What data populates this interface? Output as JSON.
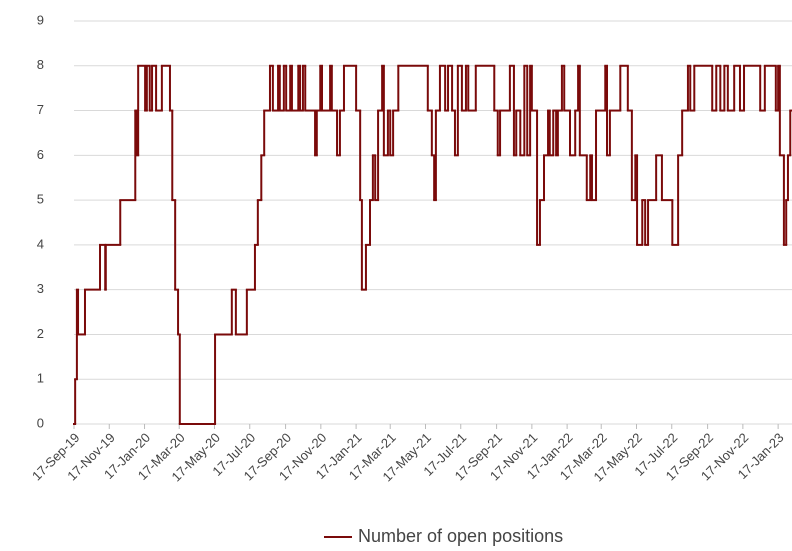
{
  "chart_data": {
    "type": "step",
    "x": [
      "2019-09-17",
      "2019-09-19",
      "2019-09-22",
      "2019-09-24",
      "2019-10-06",
      "2019-11-01",
      "2019-11-10",
      "2019-11-11",
      "2019-12-06",
      "2020-01-01",
      "2020-01-04",
      "2020-01-06",
      "2020-01-18",
      "2020-01-21",
      "2020-01-26",
      "2020-01-30",
      "2020-02-06",
      "2020-02-16",
      "2020-03-01",
      "2020-03-05",
      "2020-03-10",
      "2020-03-15",
      "2020-03-18",
      "2020-05-18",
      "2020-06-16",
      "2020-06-23",
      "2020-07-12",
      "2020-07-26",
      "2020-07-31",
      "2020-08-06",
      "2020-08-11",
      "2020-08-21",
      "2020-08-26",
      "2020-09-04",
      "2020-09-07",
      "2020-09-14",
      "2020-09-18",
      "2020-09-25",
      "2020-09-28",
      "2020-10-09",
      "2020-10-12",
      "2020-10-17",
      "2020-10-21",
      "2020-11-07",
      "2020-11-10",
      "2020-11-16",
      "2020-11-19",
      "2020-12-03",
      "2020-12-06",
      "2020-12-15",
      "2020-12-20",
      "2020-12-27",
      "2021-01-17",
      "2021-01-24",
      "2021-01-27",
      "2021-02-03",
      "2021-02-10",
      "2021-02-15",
      "2021-02-19",
      "2021-02-24",
      "2021-03-03",
      "2021-03-06",
      "2021-03-13",
      "2021-03-17",
      "2021-03-22",
      "2021-03-31",
      "2021-05-21",
      "2021-05-28",
      "2021-06-01",
      "2021-06-04",
      "2021-06-11",
      "2021-06-20",
      "2021-06-25",
      "2021-07-02",
      "2021-07-07",
      "2021-07-12",
      "2021-07-19",
      "2021-07-26",
      "2021-07-30",
      "2021-08-12",
      "2021-09-13",
      "2021-09-19",
      "2021-09-23",
      "2021-10-10",
      "2021-10-17",
      "2021-10-21",
      "2021-10-28",
      "2021-11-04",
      "2021-11-09",
      "2021-11-14",
      "2021-11-17",
      "2021-11-26",
      "2021-12-01",
      "2021-12-08",
      "2021-12-15",
      "2021-12-18",
      "2021-12-24",
      "2021-12-29",
      "2022-01-01",
      "2022-01-08",
      "2022-01-12",
      "2022-01-22",
      "2022-01-31",
      "2022-02-05",
      "2022-02-08",
      "2022-02-20",
      "2022-02-26",
      "2022-03-01",
      "2022-03-08",
      "2022-03-24",
      "2022-03-27",
      "2022-04-01",
      "2022-04-19",
      "2022-05-02",
      "2022-05-09",
      "2022-05-15",
      "2022-05-18",
      "2022-05-27",
      "2022-06-01",
      "2022-06-06",
      "2022-06-20",
      "2022-06-30",
      "2022-07-18",
      "2022-07-28",
      "2022-08-04",
      "2022-08-14",
      "2022-08-18",
      "2022-08-25",
      "2022-09-25",
      "2022-10-02",
      "2022-10-09",
      "2022-10-16",
      "2022-10-22",
      "2022-11-02",
      "2022-11-12",
      "2022-11-19",
      "2022-12-17",
      "2022-12-25",
      "2023-01-13",
      "2023-01-17",
      "2023-01-20",
      "2023-01-27",
      "2023-01-31",
      "2023-02-03",
      "2023-02-07"
    ],
    "series": [
      {
        "name": "Number of open positions",
        "color": "#7a0a0a",
        "values": [
          0,
          1,
          3,
          2,
          3,
          4,
          3,
          4,
          5,
          7,
          6,
          8,
          7,
          8,
          7,
          8,
          7,
          8,
          7,
          5,
          3,
          2,
          0,
          2,
          3,
          2,
          3,
          4,
          5,
          6,
          7,
          8,
          7,
          8,
          7,
          8,
          7,
          8,
          7,
          8,
          7,
          8,
          7,
          6,
          7,
          8,
          7,
          8,
          7,
          6,
          7,
          8,
          7,
          5,
          3,
          4,
          5,
          6,
          5,
          7,
          8,
          6,
          7,
          6,
          7,
          8,
          7,
          6,
          5,
          7,
          8,
          7,
          8,
          7,
          6,
          8,
          7,
          8,
          7,
          8,
          7,
          6,
          7,
          8,
          6,
          7,
          6,
          8,
          6,
          8,
          7,
          4,
          5,
          6,
          7,
          6,
          7,
          6,
          7,
          8,
          7,
          6,
          7,
          8,
          6,
          5,
          6,
          5,
          7,
          8,
          6,
          7,
          8,
          7,
          5,
          6,
          4,
          5,
          4,
          5,
          6,
          5,
          4,
          6,
          7,
          8,
          7,
          8,
          7,
          8,
          7,
          8,
          7,
          8,
          7,
          8,
          7,
          8,
          7,
          8,
          6,
          4,
          5,
          6,
          7
        ]
      }
    ],
    "xlim": [
      "2019-09-17",
      "2023-02-10"
    ],
    "xticks": [
      {
        "value": "2019-09-17",
        "label": "17-Sep-19"
      },
      {
        "value": "2019-11-17",
        "label": "17-Nov-19"
      },
      {
        "value": "2020-01-17",
        "label": "17-Jan-20"
      },
      {
        "value": "2020-03-17",
        "label": "17-Mar-20"
      },
      {
        "value": "2020-05-17",
        "label": "17-May-20"
      },
      {
        "value": "2020-07-17",
        "label": "17-Jul-20"
      },
      {
        "value": "2020-09-17",
        "label": "17-Sep-20"
      },
      {
        "value": "2020-11-17",
        "label": "17-Nov-20"
      },
      {
        "value": "2021-01-17",
        "label": "17-Jan-21"
      },
      {
        "value": "2021-03-17",
        "label": "17-Mar-21"
      },
      {
        "value": "2021-05-17",
        "label": "17-May-21"
      },
      {
        "value": "2021-07-17",
        "label": "17-Jul-21"
      },
      {
        "value": "2021-09-17",
        "label": "17-Sep-21"
      },
      {
        "value": "2021-11-17",
        "label": "17-Nov-21"
      },
      {
        "value": "2022-01-17",
        "label": "17-Jan-22"
      },
      {
        "value": "2022-03-17",
        "label": "17-Mar-22"
      },
      {
        "value": "2022-05-17",
        "label": "17-May-22"
      },
      {
        "value": "2022-07-17",
        "label": "17-Jul-22"
      },
      {
        "value": "2022-09-17",
        "label": "17-Sep-22"
      },
      {
        "value": "2022-11-17",
        "label": "17-Nov-22"
      },
      {
        "value": "2023-01-17",
        "label": "17-Jan-23"
      }
    ],
    "ylim": [
      0,
      9
    ],
    "yticks": [
      0,
      1,
      2,
      3,
      4,
      5,
      6,
      7,
      8,
      9
    ],
    "grid": true,
    "legend": "bottom"
  }
}
